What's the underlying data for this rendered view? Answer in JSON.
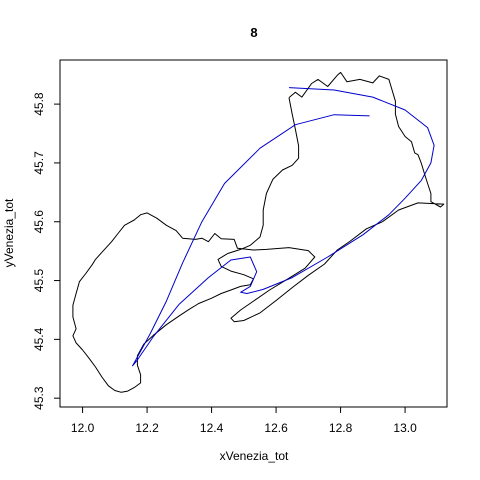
{
  "chart_data": {
    "type": "line",
    "title": "8",
    "xlabel": "xVenezia_tot",
    "ylabel": "yVenezia_tot",
    "xlim": [
      11.93,
      13.13
    ],
    "ylim": [
      45.285,
      45.875
    ],
    "x_ticks": [
      "12.0",
      "12.2",
      "12.4",
      "12.6",
      "12.8",
      "13.0"
    ],
    "y_ticks": [
      "45.3",
      "45.4",
      "45.5",
      "45.6",
      "45.7",
      "45.8"
    ],
    "grid": false,
    "series": [
      {
        "color": "#000000",
        "points": [
          [
            12.64,
            45.811
          ],
          [
            12.66,
            45.82
          ],
          [
            12.68,
            45.812
          ],
          [
            12.71,
            45.835
          ],
          [
            12.73,
            45.842
          ],
          [
            12.76,
            45.83
          ],
          [
            12.79,
            45.849
          ],
          [
            12.8,
            45.854
          ],
          [
            12.82,
            45.838
          ],
          [
            12.86,
            45.842
          ],
          [
            12.9,
            45.836
          ],
          [
            12.92,
            45.848
          ],
          [
            12.95,
            45.842
          ],
          [
            12.97,
            45.805
          ],
          [
            12.97,
            45.783
          ],
          [
            12.98,
            45.762
          ],
          [
            13.0,
            45.745
          ],
          [
            13.02,
            45.736
          ],
          [
            13.03,
            45.717
          ],
          [
            13.04,
            45.714
          ],
          [
            13.05,
            45.7
          ],
          [
            13.06,
            45.682
          ],
          [
            13.07,
            45.665
          ],
          [
            13.08,
            45.648
          ],
          [
            13.08,
            45.634
          ],
          [
            13.11,
            45.625
          ],
          [
            13.12,
            45.63
          ],
          [
            13.04,
            45.632
          ],
          [
            12.98,
            45.62
          ],
          [
            12.93,
            45.6
          ],
          [
            12.88,
            45.588
          ],
          [
            12.83,
            45.567
          ],
          [
            12.79,
            45.552
          ],
          [
            12.75,
            45.528
          ],
          [
            12.7,
            45.509
          ],
          [
            12.65,
            45.488
          ],
          [
            12.6,
            45.466
          ],
          [
            12.55,
            45.445
          ],
          [
            12.5,
            45.432
          ],
          [
            12.47,
            45.43
          ],
          [
            12.46,
            45.436
          ],
          [
            12.49,
            45.45
          ],
          [
            12.53,
            45.465
          ],
          [
            12.58,
            45.484
          ],
          [
            12.64,
            45.504
          ],
          [
            12.69,
            45.521
          ],
          [
            12.72,
            45.54
          ],
          [
            12.7,
            45.551
          ],
          [
            12.64,
            45.556
          ],
          [
            12.57,
            45.553
          ],
          [
            12.53,
            45.552
          ],
          [
            12.48,
            45.555
          ],
          [
            12.47,
            45.57
          ],
          [
            12.43,
            45.571
          ],
          [
            12.41,
            45.58
          ],
          [
            12.39,
            45.566
          ],
          [
            12.37,
            45.572
          ],
          [
            12.35,
            45.57
          ],
          [
            12.31,
            45.572
          ],
          [
            12.29,
            45.585
          ],
          [
            12.26,
            45.594
          ],
          [
            12.23,
            45.606
          ],
          [
            12.2,
            45.615
          ],
          [
            12.18,
            45.612
          ],
          [
            12.16,
            45.603
          ],
          [
            12.13,
            45.594
          ],
          [
            12.11,
            45.58
          ],
          [
            12.09,
            45.566
          ],
          [
            12.06,
            45.548
          ],
          [
            12.04,
            45.536
          ],
          [
            12.03,
            45.527
          ],
          [
            12.01,
            45.512
          ],
          [
            11.99,
            45.498
          ],
          [
            11.98,
            45.478
          ],
          [
            11.97,
            45.458
          ],
          [
            11.97,
            45.438
          ],
          [
            11.98,
            45.418
          ],
          [
            11.97,
            45.406
          ],
          [
            11.98,
            45.394
          ],
          [
            12.0,
            45.382
          ],
          [
            12.02,
            45.368
          ],
          [
            12.04,
            45.353
          ],
          [
            12.06,
            45.336
          ],
          [
            12.08,
            45.321
          ],
          [
            12.1,
            45.313
          ],
          [
            12.12,
            45.31
          ],
          [
            12.14,
            45.312
          ],
          [
            12.16,
            45.318
          ],
          [
            12.18,
            45.326
          ],
          [
            12.18,
            45.34
          ],
          [
            12.17,
            45.356
          ],
          [
            12.17,
            45.372
          ],
          [
            12.19,
            45.392
          ],
          [
            12.22,
            45.407
          ],
          [
            12.26,
            45.425
          ],
          [
            12.3,
            45.44
          ],
          [
            12.33,
            45.451
          ],
          [
            12.36,
            45.461
          ],
          [
            12.4,
            45.47
          ],
          [
            12.43,
            45.478
          ],
          [
            12.46,
            45.484
          ],
          [
            12.49,
            45.49
          ],
          [
            12.52,
            45.493
          ],
          [
            12.53,
            45.503
          ],
          [
            12.5,
            45.51
          ],
          [
            12.46,
            45.516
          ],
          [
            12.43,
            45.524
          ],
          [
            12.42,
            45.536
          ],
          [
            12.45,
            45.546
          ],
          [
            12.49,
            45.553
          ],
          [
            12.52,
            45.56
          ],
          [
            12.55,
            45.574
          ],
          [
            12.56,
            45.594
          ],
          [
            12.56,
            45.62
          ],
          [
            12.57,
            45.648
          ],
          [
            12.59,
            45.672
          ],
          [
            12.62,
            45.688
          ],
          [
            12.65,
            45.696
          ],
          [
            12.67,
            45.708
          ],
          [
            12.67,
            45.729
          ],
          [
            12.66,
            45.757
          ],
          [
            12.65,
            45.783
          ],
          [
            12.64,
            45.811
          ]
        ]
      },
      {
        "color": "#0000CC",
        "points": [
          [
            12.89,
            45.78
          ],
          [
            12.78,
            45.782
          ],
          [
            12.66,
            45.765
          ],
          [
            12.55,
            45.725
          ],
          [
            12.44,
            45.665
          ],
          [
            12.37,
            45.6
          ],
          [
            12.31,
            45.53
          ],
          [
            12.26,
            45.465
          ],
          [
            12.21,
            45.41
          ],
          [
            12.17,
            45.37
          ],
          [
            12.155,
            45.355
          ],
          [
            12.17,
            45.365
          ],
          [
            12.22,
            45.405
          ],
          [
            12.3,
            45.46
          ],
          [
            12.39,
            45.505
          ],
          [
            12.46,
            45.535
          ],
          [
            12.52,
            45.54
          ],
          [
            12.54,
            45.515
          ],
          [
            12.52,
            45.49
          ],
          [
            12.49,
            45.48
          ],
          [
            12.51,
            45.478
          ],
          [
            12.56,
            45.485
          ],
          [
            12.65,
            45.505
          ],
          [
            12.76,
            45.54
          ],
          [
            12.87,
            45.578
          ],
          [
            12.95,
            45.612
          ],
          [
            13.0,
            45.64
          ],
          [
            13.05,
            45.67
          ],
          [
            13.08,
            45.7
          ],
          [
            13.09,
            45.73
          ],
          [
            13.07,
            45.76
          ],
          [
            13.0,
            45.79
          ],
          [
            12.9,
            45.812
          ],
          [
            12.78,
            45.824
          ],
          [
            12.64,
            45.828
          ]
        ]
      }
    ]
  }
}
